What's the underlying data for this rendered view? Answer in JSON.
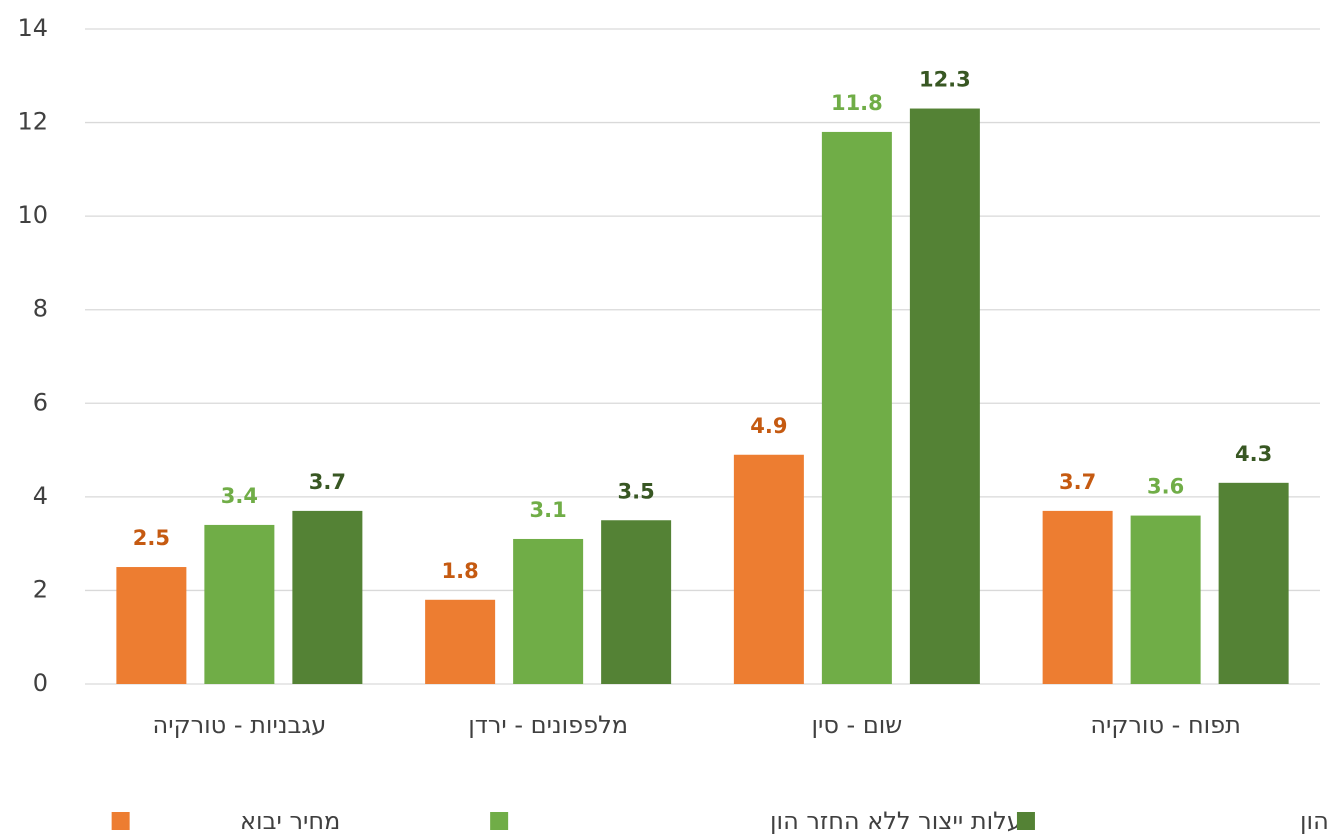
{
  "chart_data": {
    "type": "bar",
    "categories": [
      "עגבניות - טורקיה",
      "מלפפונים - ירדן",
      "שום - סין",
      "תפוח - טורקיה"
    ],
    "series": [
      {
        "name": "מחיר יבוא",
        "color": "#ed7d31",
        "label_color": "#c55a11",
        "values": [
          2.5,
          1.8,
          4.9,
          3.7
        ]
      },
      {
        "name": "עלות ייצור ללא החזר הון",
        "color": "#70ad47",
        "label_color": "#70ad47",
        "values": [
          3.4,
          3.1,
          11.8,
          3.6
        ]
      },
      {
        "name": "עלות ייצור כולל החזר הון",
        "color": "#548235",
        "label_color": "#385723",
        "values": [
          3.7,
          3.5,
          12.3,
          4.3
        ]
      }
    ],
    "ylim": [
      0,
      14
    ],
    "yticks": [
      0,
      2,
      4,
      6,
      8,
      10,
      12,
      14
    ],
    "grid": true
  }
}
